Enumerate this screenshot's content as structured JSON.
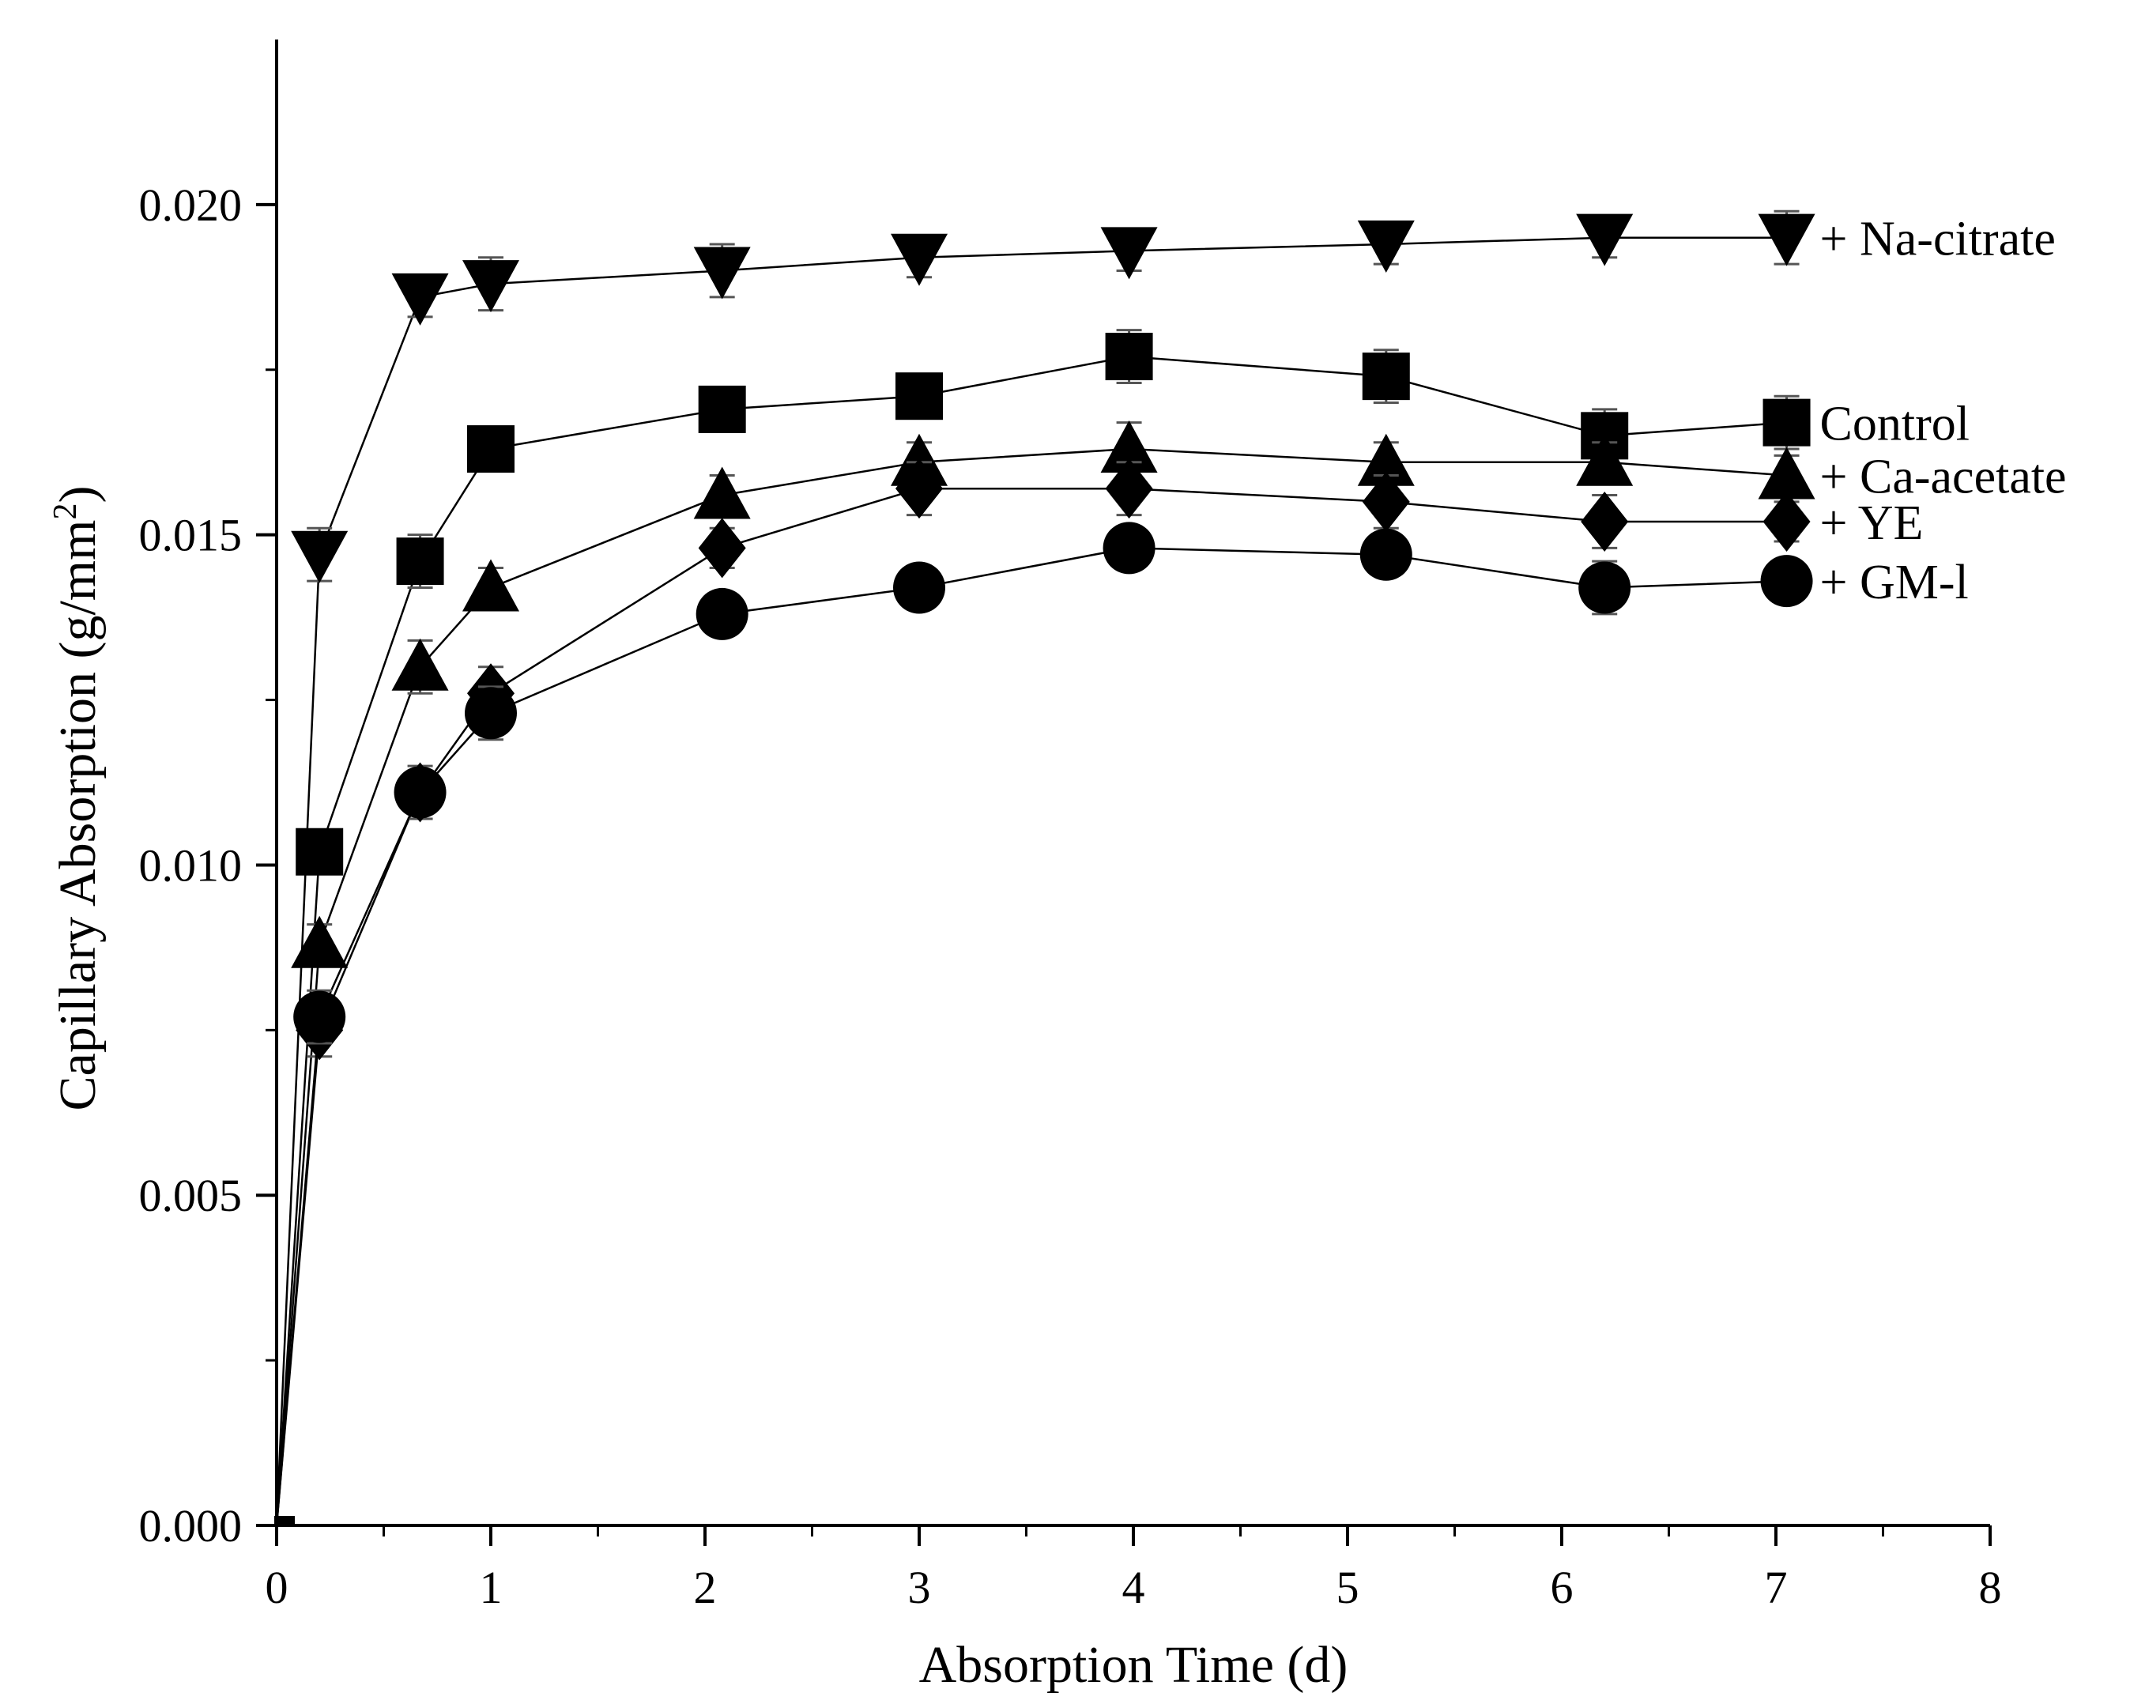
{
  "chart_data": {
    "type": "line",
    "title": "",
    "xlabel": "Absorption Time (d)",
    "ylabel_main": "Capillary Absorption (g/mm",
    "ylabel_sup": "2",
    "ylabel_close": ")",
    "xlim": [
      0,
      8
    ],
    "ylim": [
      0,
      0.0225
    ],
    "x_ticks": [
      0,
      1,
      2,
      3,
      4,
      5,
      6,
      7,
      8
    ],
    "x_tick_labels": [
      "0",
      "1",
      "2",
      "3",
      "4",
      "5",
      "6",
      "7",
      "8"
    ],
    "y_ticks": [
      0,
      0.005,
      0.01,
      0.015,
      0.02
    ],
    "y_tick_labels": [
      "0.000",
      "0.005",
      "0.010",
      "0.015",
      "0.020"
    ],
    "grid": false,
    "legend": "inline labels at line ends, right",
    "series": [
      {
        "name": "+ Na-citrate",
        "marker": "triangle-down",
        "x": [
          0,
          0.2,
          0.67,
          1,
          2.08,
          3,
          3.98,
          5.18,
          6.2,
          7.05
        ],
        "y": [
          0,
          0.0147,
          0.0186,
          0.0188,
          0.019,
          0.0192,
          0.0193,
          0.0194,
          0.0195,
          0.0195
        ],
        "err": [
          0,
          0.0004,
          0.0003,
          0.0004,
          0.0004,
          0.0003,
          0.0003,
          0.0003,
          0.0003,
          0.0004
        ]
      },
      {
        "name": "Control",
        "marker": "square",
        "x": [
          0,
          0.2,
          0.67,
          1,
          2.08,
          3,
          3.98,
          5.18,
          6.2,
          7.05
        ],
        "y": [
          0,
          0.0102,
          0.0146,
          0.0163,
          0.0169,
          0.0171,
          0.0177,
          0.0174,
          0.0165,
          0.0167
        ],
        "err": [
          0,
          0.0003,
          0.0004,
          0.0003,
          0.0003,
          0.0003,
          0.0004,
          0.0004,
          0.0004,
          0.0004
        ]
      },
      {
        "name": "+ Ca-acetate",
        "marker": "triangle-up",
        "x": [
          0,
          0.2,
          0.67,
          1,
          2.08,
          3,
          3.98,
          5.18,
          6.2,
          7.05
        ],
        "y": [
          0,
          0.0088,
          0.013,
          0.0142,
          0.0156,
          0.0161,
          0.0163,
          0.0161,
          0.0161,
          0.0159
        ],
        "err": [
          0,
          0.0003,
          0.0004,
          0.0003,
          0.0003,
          0.0003,
          0.0004,
          0.0003,
          0.0003,
          0.0003
        ]
      },
      {
        "name": "+ YE",
        "marker": "diamond",
        "x": [
          0,
          0.2,
          0.67,
          1,
          2.08,
          3,
          3.98,
          5.18,
          6.2,
          7.05
        ],
        "y": [
          0,
          0.0075,
          0.0111,
          0.0126,
          0.0148,
          0.0157,
          0.0157,
          0.0155,
          0.0152,
          0.0152
        ],
        "err": [
          0,
          0.0004,
          0.0004,
          0.0004,
          0.0003,
          0.0004,
          0.0004,
          0.0004,
          0.0004,
          0.0003
        ]
      },
      {
        "name": "+ GM-l",
        "marker": "circle",
        "x": [
          0,
          0.2,
          0.67,
          1,
          2.08,
          3,
          3.98,
          5.18,
          6.2,
          7.05
        ],
        "y": [
          0,
          0.0077,
          0.0111,
          0.0123,
          0.0138,
          0.0142,
          0.0148,
          0.0147,
          0.0142,
          0.0143
        ],
        "err": [
          0,
          0.0004,
          0.0003,
          0.0004,
          0.0003,
          0.0003,
          0.0003,
          0.0003,
          0.0004,
          0.0003
        ]
      }
    ]
  }
}
